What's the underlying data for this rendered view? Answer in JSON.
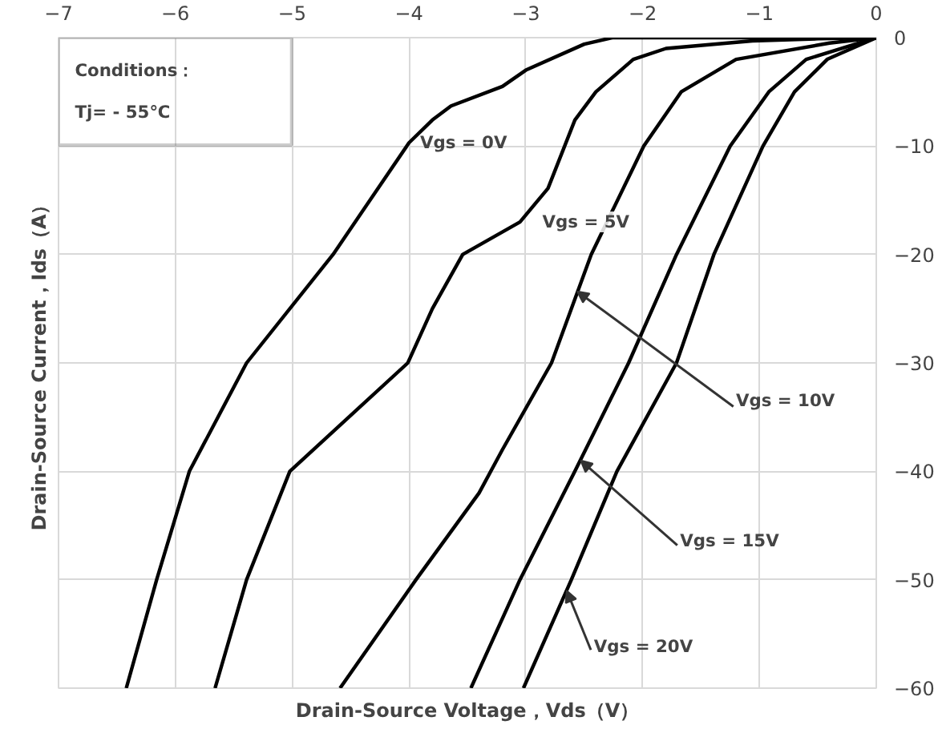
{
  "chart_data": {
    "type": "line",
    "xlabel": "Drain-Source Voltage，Vds（V）",
    "ylabel": "Drain-Source Current，Ids（A）",
    "xlim": [
      -7,
      0
    ],
    "xticks": [
      -7,
      -6,
      -5,
      -4,
      -3,
      -2,
      -1,
      0
    ],
    "ylim": [
      -60,
      0
    ],
    "yticks": [
      -60,
      -50,
      -40,
      -30,
      -20,
      -10,
      0
    ],
    "grid": true,
    "line_style": "solid",
    "series": [
      {
        "color": "#000000",
        "x": [
          0,
          -1,
          -2,
          -2.26,
          -2.5,
          -3,
          -3.2,
          -3.64,
          -3.8,
          -4.0,
          -4.65,
          -5.39,
          -5.88,
          -6.16,
          -6.42
        ],
        "values": [
          0,
          0,
          0,
          0,
          -0.6,
          -3,
          -4.5,
          -6.3,
          -7.6,
          -9.7,
          -20,
          -30,
          -40,
          -50,
          -60
        ]
      },
      {
        "color": "#000000",
        "x": [
          0,
          -0.5,
          -1.06,
          -1.8,
          -2.08,
          -2.4,
          -2.58,
          -2.81,
          -3.05,
          -3.54,
          -3.8,
          -4.01,
          -5.02,
          -5.39,
          -5.66
        ],
        "values": [
          0,
          -0.1,
          -0.3,
          -1,
          -2,
          -5,
          -7.6,
          -13.9,
          -17,
          -20,
          -25,
          -30,
          -40,
          -50,
          -60
        ]
      },
      {
        "color": "#000000",
        "x": [
          0,
          -0.4,
          -1.2,
          -1.67,
          -1.99,
          -2.44,
          -2.78,
          -3.2,
          -3.4,
          -3.94,
          -4.59
        ],
        "values": [
          0,
          -0.5,
          -2,
          -5,
          -10,
          -20,
          -30,
          -38,
          -42,
          -50,
          -60
        ]
      },
      {
        "color": "#000000",
        "x": [
          0,
          -0.6,
          -0.92,
          -1.25,
          -1.71,
          -2.12,
          -2.58,
          -3.05,
          -3.47
        ],
        "values": [
          0,
          -2,
          -5,
          -10,
          -20,
          -30,
          -40,
          -50,
          -60
        ]
      },
      {
        "color": "#000000",
        "x": [
          0,
          -0.42,
          -0.7,
          -0.97,
          -1.39,
          -1.71,
          -2.22,
          -2.61,
          -3.02
        ],
        "values": [
          0,
          -2,
          -5,
          -10,
          -20,
          -30,
          -40,
          -50,
          -60
        ]
      }
    ],
    "annotations": [
      "Conditions：",
      "Tj= - 55℃",
      {
        "text": "Vgs = 0V",
        "x": -3.96,
        "y": -9.7
      },
      {
        "text": "Vgs = 5V",
        "x": -3.05,
        "y": -17
      },
      {
        "text": "Vgs = 10V",
        "x": -2.56,
        "y": -23.4
      },
      {
        "text": "Vgs = 15V",
        "x": -2.53,
        "y": -39
      },
      {
        "text": "Vgs = 20V",
        "x": -2.65,
        "y": -51
      }
    ]
  }
}
